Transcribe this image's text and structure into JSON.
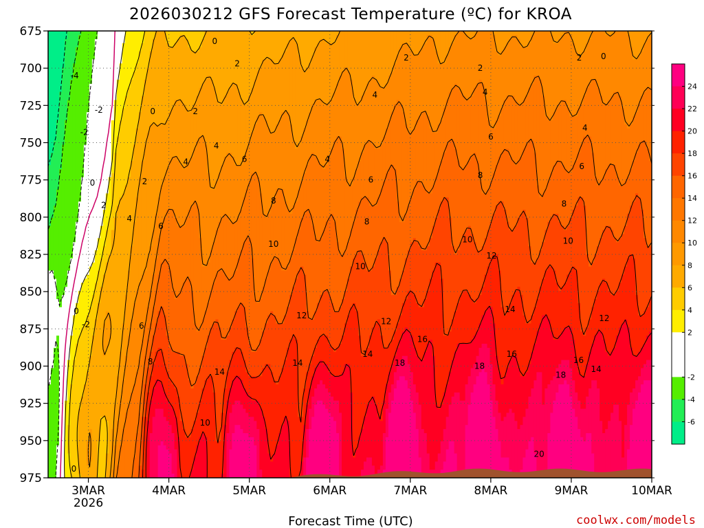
{
  "chart_data": {
    "type": "heatmap",
    "title": "2026030212 GFS Forecast Temperature (ºC) for KROA",
    "xlabel": "Forecast Time (UTC)",
    "credit": "coolwx.com/models",
    "x_ticks": [
      "3MAR",
      "4MAR",
      "5MAR",
      "6MAR",
      "7MAR",
      "8MAR",
      "9MAR",
      "10MAR"
    ],
    "x_year": "2026",
    "y_ticks": [
      675,
      700,
      725,
      750,
      775,
      800,
      825,
      850,
      875,
      900,
      925,
      950,
      975
    ],
    "ylim": [
      975,
      675
    ],
    "x_range_days": [
      2.5,
      10.0
    ],
    "colorbar": {
      "labels": [
        "24",
        "22",
        "20",
        "18",
        "16",
        "14",
        "12",
        "10",
        "8",
        "6",
        "4",
        "2",
        "-2",
        "-4",
        "-6"
      ],
      "bins": [
        {
          "lo": 24,
          "hi": 26,
          "color": "#ff0080"
        },
        {
          "lo": 22,
          "hi": 24,
          "color": "#ff0055"
        },
        {
          "lo": 20,
          "hi": 22,
          "color": "#ff0022"
        },
        {
          "lo": 18,
          "hi": 20,
          "color": "#ff2200"
        },
        {
          "lo": 16,
          "hi": 18,
          "color": "#ff4400"
        },
        {
          "lo": 14,
          "hi": 16,
          "color": "#ff6600"
        },
        {
          "lo": 12,
          "hi": 14,
          "color": "#ff7700"
        },
        {
          "lo": 10,
          "hi": 12,
          "color": "#ff8800"
        },
        {
          "lo": 8,
          "hi": 10,
          "color": "#ff9900"
        },
        {
          "lo": 6,
          "hi": 8,
          "color": "#ffaa00"
        },
        {
          "lo": 4,
          "hi": 6,
          "color": "#ffcc00"
        },
        {
          "lo": 2,
          "hi": 4,
          "color": "#ffee00"
        },
        {
          "lo": 0,
          "hi": 2,
          "color": "#ffffff"
        },
        {
          "lo": -2,
          "hi": 0,
          "color": "#ffffff"
        },
        {
          "lo": -4,
          "hi": -2,
          "color": "#55ee00"
        },
        {
          "lo": -6,
          "hi": -4,
          "color": "#22ee55"
        },
        {
          "lo": -8,
          "hi": -6,
          "color": "#00ee88"
        }
      ]
    },
    "freezing_contour_color": "#cc0066",
    "terrain_color": "#a0522d",
    "contour_labels": [
      {
        "text": "0",
        "day": 4.57,
        "p": 682
      },
      {
        "text": "0",
        "day": 9.4,
        "p": 692
      },
      {
        "text": "0",
        "day": 3.05,
        "p": 777
      },
      {
        "text": "0",
        "day": 2.85,
        "p": 863
      },
      {
        "text": "0",
        "day": 2.82,
        "p": 969
      },
      {
        "text": "-4",
        "day": 2.83,
        "p": 705
      },
      {
        "text": "-2",
        "day": 3.13,
        "p": 728
      },
      {
        "text": "-2",
        "day": 2.95,
        "p": 743
      },
      {
        "text": "-2",
        "day": 2.97,
        "p": 872
      },
      {
        "text": "0",
        "day": 3.8,
        "p": 729
      },
      {
        "text": "2",
        "day": 4.85,
        "p": 697
      },
      {
        "text": "2",
        "day": 3.7,
        "p": 776
      },
      {
        "text": "2",
        "day": 3.19,
        "p": 792
      },
      {
        "text": "2",
        "day": 4.33,
        "p": 729
      },
      {
        "text": "2",
        "day": 6.95,
        "p": 693
      },
      {
        "text": "2",
        "day": 7.87,
        "p": 700
      },
      {
        "text": "2",
        "day": 9.1,
        "p": 693
      },
      {
        "text": "4",
        "day": 4.21,
        "p": 763
      },
      {
        "text": "4",
        "day": 3.51,
        "p": 801
      },
      {
        "text": "4",
        "day": 4.59,
        "p": 752
      },
      {
        "text": "4",
        "day": 5.97,
        "p": 761
      },
      {
        "text": "4",
        "day": 6.56,
        "p": 718
      },
      {
        "text": "4",
        "day": 7.93,
        "p": 716
      },
      {
        "text": "4",
        "day": 9.17,
        "p": 740
      },
      {
        "text": "6",
        "day": 3.9,
        "p": 806
      },
      {
        "text": "6",
        "day": 3.66,
        "p": 873
      },
      {
        "text": "6",
        "day": 4.94,
        "p": 761
      },
      {
        "text": "6",
        "day": 6.51,
        "p": 775
      },
      {
        "text": "6",
        "day": 8.0,
        "p": 746
      },
      {
        "text": "6",
        "day": 9.13,
        "p": 766
      },
      {
        "text": "8",
        "day": 3.77,
        "p": 897
      },
      {
        "text": "8",
        "day": 5.3,
        "p": 789
      },
      {
        "text": "8",
        "day": 6.46,
        "p": 803
      },
      {
        "text": "8",
        "day": 7.87,
        "p": 772
      },
      {
        "text": "8",
        "day": 8.91,
        "p": 791
      },
      {
        "text": "10",
        "day": 4.45,
        "p": 938
      },
      {
        "text": "10",
        "day": 5.3,
        "p": 818
      },
      {
        "text": "10",
        "day": 6.38,
        "p": 833
      },
      {
        "text": "10",
        "day": 7.71,
        "p": 815
      },
      {
        "text": "10",
        "day": 8.96,
        "p": 816
      },
      {
        "text": "12",
        "day": 5.65,
        "p": 866
      },
      {
        "text": "12",
        "day": 6.7,
        "p": 870
      },
      {
        "text": "12",
        "day": 8.01,
        "p": 826
      },
      {
        "text": "12",
        "day": 9.41,
        "p": 868
      },
      {
        "text": "14",
        "day": 4.63,
        "p": 904
      },
      {
        "text": "14",
        "day": 5.6,
        "p": 898
      },
      {
        "text": "14",
        "day": 6.47,
        "p": 892
      },
      {
        "text": "14",
        "day": 8.24,
        "p": 862
      },
      {
        "text": "14",
        "day": 9.31,
        "p": 902
      },
      {
        "text": "16",
        "day": 7.15,
        "p": 882
      },
      {
        "text": "16",
        "day": 8.26,
        "p": 892
      },
      {
        "text": "16",
        "day": 9.09,
        "p": 896
      },
      {
        "text": "18",
        "day": 6.87,
        "p": 898
      },
      {
        "text": "18",
        "day": 7.86,
        "p": 900
      },
      {
        "text": "18",
        "day": 8.87,
        "p": 906
      },
      {
        "text": "20",
        "day": 8.6,
        "p": 959
      }
    ]
  }
}
